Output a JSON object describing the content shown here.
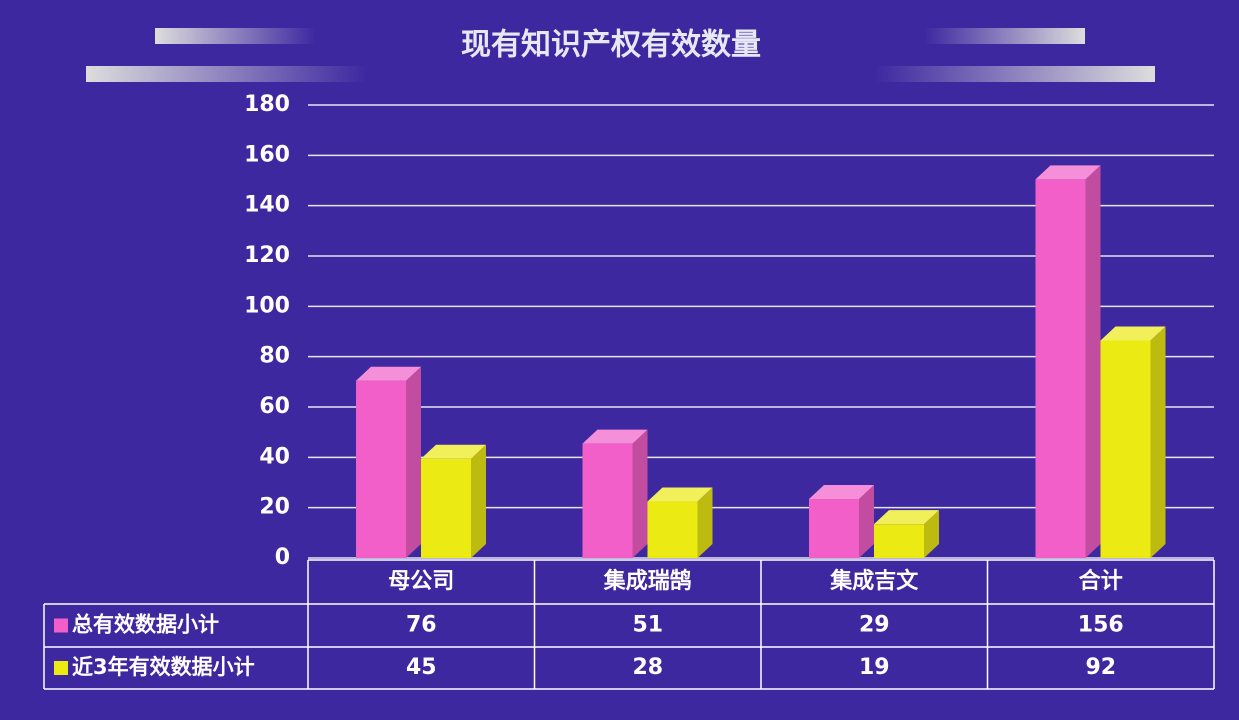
{
  "chart_data": {
    "type": "bar3d",
    "title": "现有知识产权有效数量",
    "categories": [
      "母公司",
      "集成瑞鹄",
      "集成吉文",
      "合计"
    ],
    "series": [
      {
        "name": "总有效数据小计",
        "color": "#f25fc8",
        "values": [
          76,
          51,
          29,
          156
        ]
      },
      {
        "name": "近3年有效数据小计",
        "color": "#ecea13",
        "values": [
          45,
          28,
          19,
          92
        ]
      }
    ],
    "ylim": [
      0,
      180
    ],
    "yticks": [
      0,
      20,
      40,
      60,
      80,
      100,
      120,
      140,
      160,
      180
    ],
    "grid": true
  }
}
